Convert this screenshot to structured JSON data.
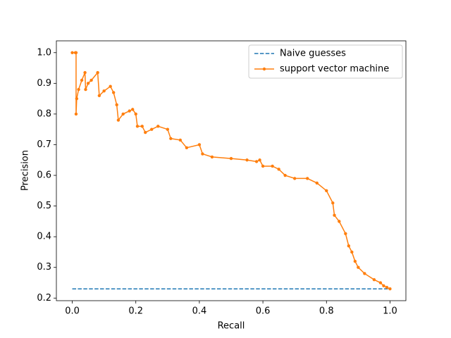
{
  "chart_data": {
    "type": "line",
    "x_label": "Recall",
    "y_label": "Precision",
    "xlim": [
      -0.05,
      1.05
    ],
    "ylim": [
      0.1915,
      1.0385
    ],
    "xticks": [
      {
        "value": 0,
        "label": "0.0"
      },
      0.2,
      0.4,
      0.6,
      0.8,
      {
        "value": 1,
        "label": "1.0"
      }
    ],
    "yticks": [
      0.2,
      0.3,
      0.4,
      0.5,
      0.6,
      0.7,
      0.8,
      0.9,
      {
        "value": 1,
        "label": "1.0"
      }
    ],
    "legend": "upper right",
    "series": [
      {
        "name": "Naive guesses",
        "color": "#1f77b4",
        "linestyle": "dashed",
        "marker": false,
        "x": [
          0,
          1
        ],
        "values": [
          0.23,
          0.23
        ]
      },
      {
        "name": "support vector machine",
        "color": "#ff7f0e",
        "linestyle": "solid",
        "marker": true,
        "x": [
          0,
          0.01,
          0.012,
          0.012,
          0.014,
          0.02,
          0.03,
          0.04,
          0.042,
          0.05,
          0.06,
          0.08,
          0.085,
          0.1,
          0.12,
          0.13,
          0.14,
          0.145,
          0.16,
          0.18,
          0.19,
          0.2,
          0.205,
          0.22,
          0.23,
          0.25,
          0.27,
          0.3,
          0.31,
          0.34,
          0.36,
          0.4,
          0.41,
          0.44,
          0.5,
          0.55,
          0.58,
          0.59,
          0.6,
          0.63,
          0.65,
          0.67,
          0.7,
          0.74,
          0.77,
          0.8,
          0.82,
          0.825,
          0.84,
          0.86,
          0.87,
          0.88,
          0.89,
          0.9,
          0.92,
          0.95,
          0.97,
          0.98,
          0.99,
          1.0
        ],
        "values": [
          1.0,
          1.0,
          1.0,
          0.8,
          0.85,
          0.88,
          0.91,
          0.935,
          0.88,
          0.9,
          0.91,
          0.935,
          0.86,
          0.875,
          0.89,
          0.87,
          0.83,
          0.78,
          0.8,
          0.81,
          0.815,
          0.8,
          0.76,
          0.76,
          0.74,
          0.75,
          0.76,
          0.75,
          0.72,
          0.715,
          0.69,
          0.7,
          0.67,
          0.66,
          0.655,
          0.65,
          0.645,
          0.65,
          0.63,
          0.63,
          0.62,
          0.6,
          0.59,
          0.59,
          0.575,
          0.55,
          0.51,
          0.47,
          0.45,
          0.41,
          0.37,
          0.35,
          0.32,
          0.3,
          0.28,
          0.26,
          0.25,
          0.24,
          0.235,
          0.23
        ]
      }
    ]
  }
}
